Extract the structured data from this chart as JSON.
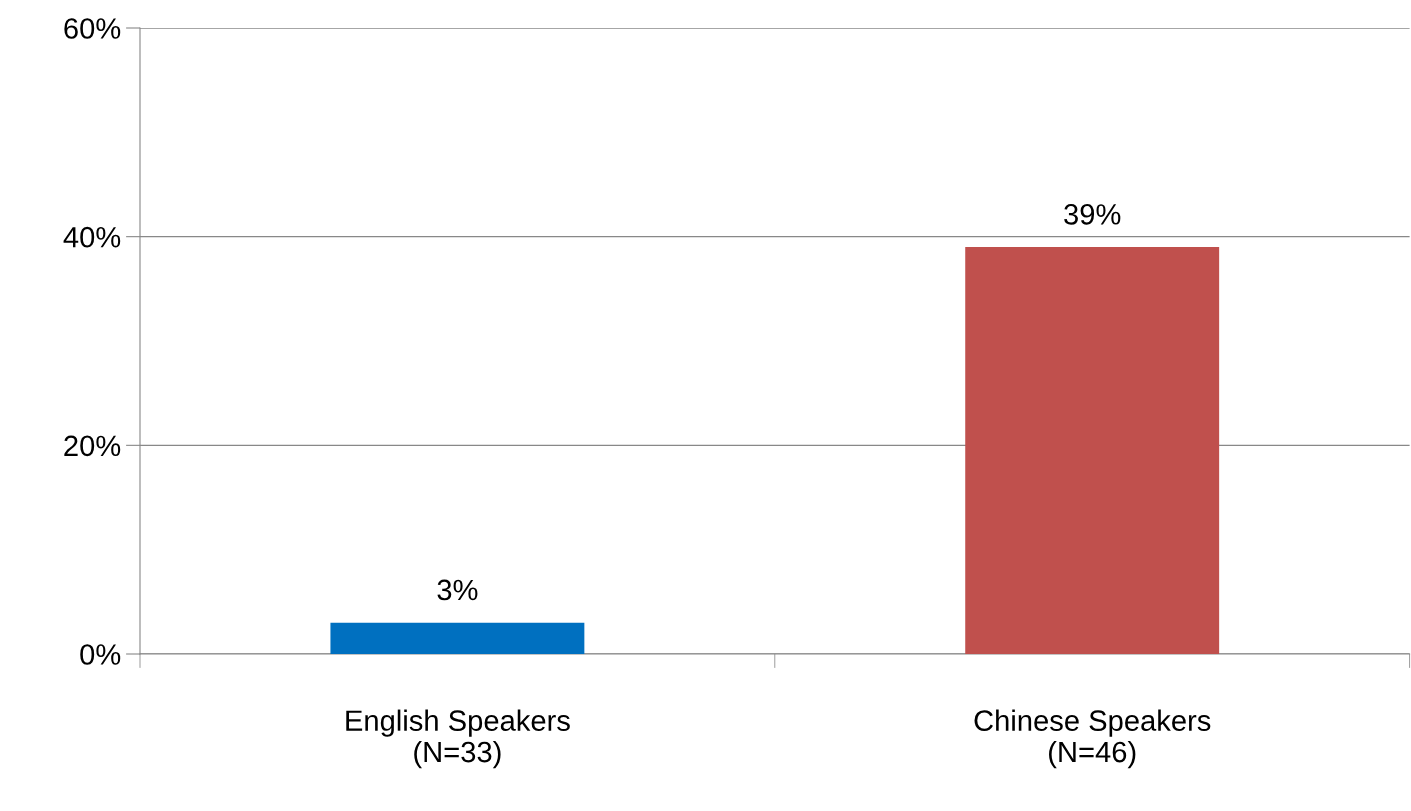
{
  "chart_data": {
    "type": "bar",
    "categories": [
      "English Speakers\n(N=33)",
      "Chinese Speakers\n(N=46)"
    ],
    "values": [
      3,
      39
    ],
    "colors": [
      "#0070c0",
      "#c0504d"
    ],
    "value_labels": [
      "3%",
      "39%"
    ],
    "ylim": [
      0,
      60
    ],
    "yticks": [
      {
        "value": 0,
        "label": "0%"
      },
      {
        "value": 20,
        "label": "20%"
      },
      {
        "value": 40,
        "label": "40%"
      },
      {
        "value": 60,
        "label": "60%"
      }
    ],
    "grid": "y",
    "legend": false
  }
}
